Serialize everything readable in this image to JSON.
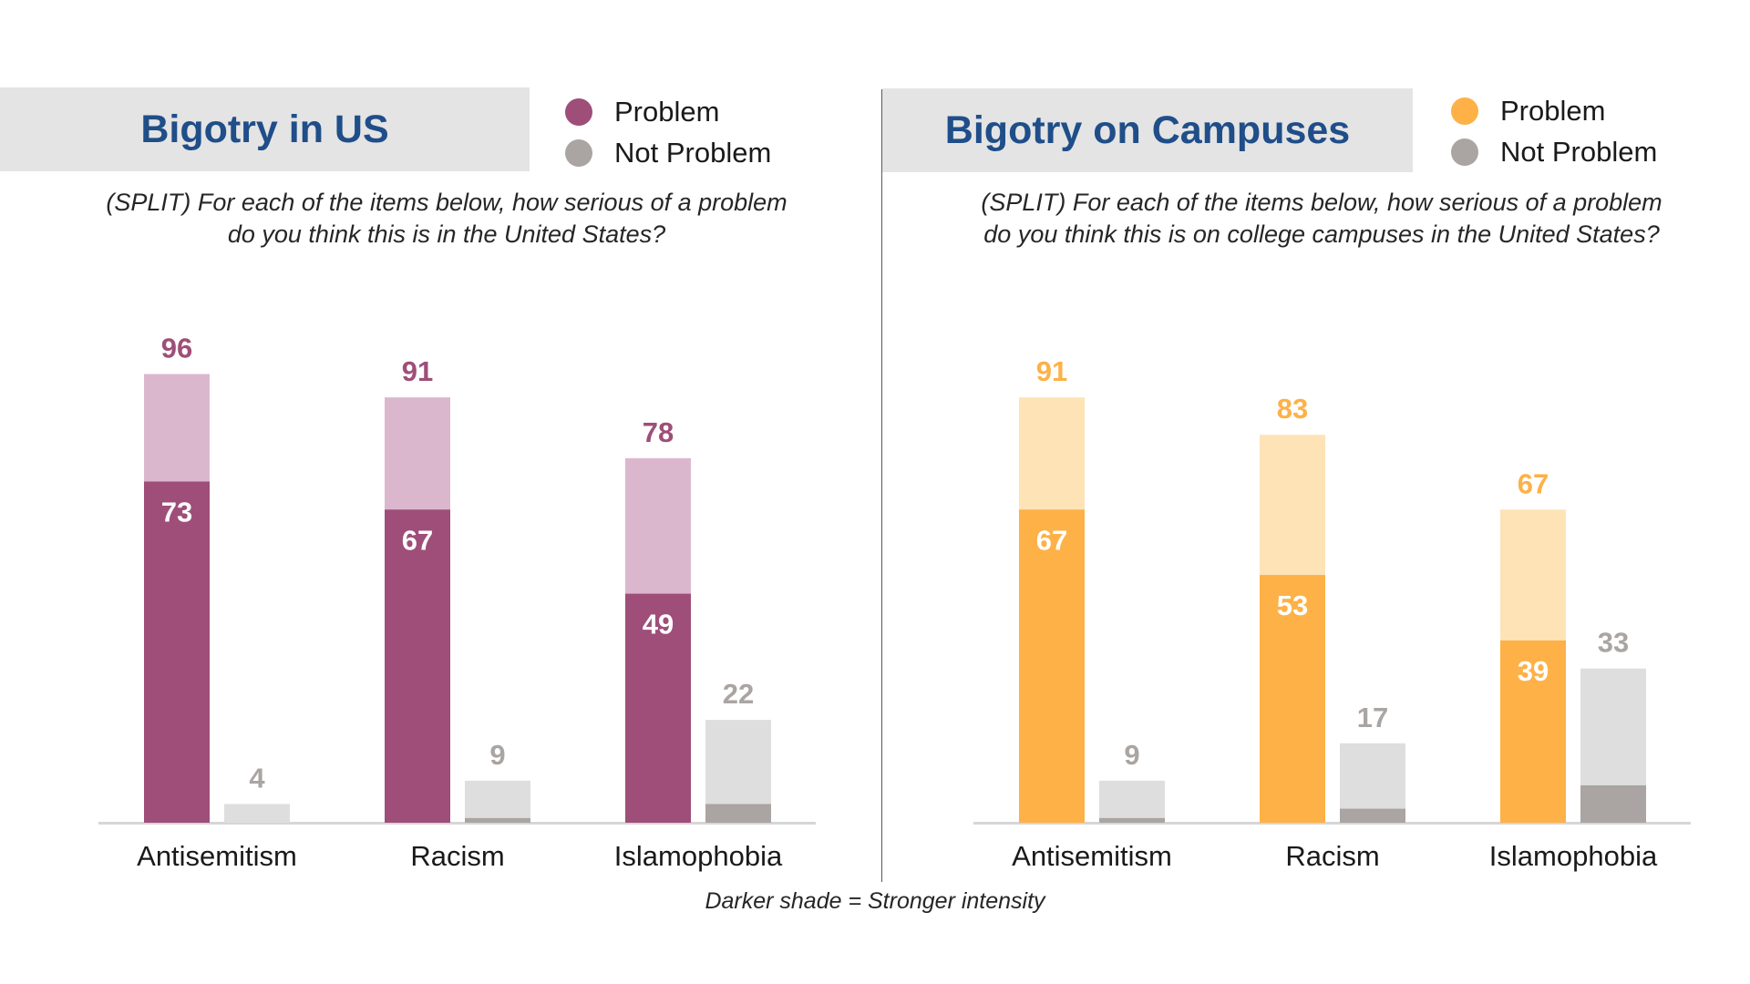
{
  "footnote": "Darker shade = Stronger intensity",
  "colors": {
    "us_problem_dark": "#9e4e79",
    "us_problem_light": "#dbb7ce",
    "campus_problem_dark": "#fdb147",
    "campus_problem_light": "#fee3b7",
    "not_problem_light": "#dedede",
    "not_problem_dark": "#aaa5a2",
    "us_label": "#9e4e79",
    "campus_label": "#fdb147",
    "not_problem_label": "#aaa5a2",
    "title_text": "#1f4e89",
    "title_band": "#e4e4e4"
  },
  "panels": [
    {
      "title": "Bigotry in US",
      "legend": {
        "problem": "Problem",
        "not_problem": "Not Problem"
      },
      "question": "(SPLIT) For each of the items below, how serious of a problem do you think this is in the United States?",
      "question_line1": "(SPLIT) For each of the items below, how serious of a problem",
      "question_line2": "do you think this is in the United States?"
    },
    {
      "title": "Bigotry on Campuses",
      "legend": {
        "problem": "Problem",
        "not_problem": "Not Problem"
      },
      "question": "(SPLIT) For each of the items below, how serious of a problem do you think this is on college campuses in the United States?",
      "question_line1": "(SPLIT) For each of the items below, how serious of a problem",
      "question_line2": "do you think this is on college campuses in the United States?"
    }
  ],
  "chart_data": [
    {
      "type": "bar",
      "title": "Bigotry in US",
      "categories": [
        "Antisemitism",
        "Racism",
        "Islamophobia"
      ],
      "ylim": [
        0,
        100
      ],
      "series": [
        {
          "name": "Problem",
          "values": [
            96,
            91,
            78
          ],
          "strong": [
            73,
            67,
            49
          ]
        },
        {
          "name": "Not Problem",
          "values": [
            4,
            9,
            22
          ],
          "strong": [
            0,
            1,
            4
          ]
        }
      ]
    },
    {
      "type": "bar",
      "title": "Bigotry on Campuses",
      "categories": [
        "Antisemitism",
        "Racism",
        "Islamophobia"
      ],
      "ylim": [
        0,
        100
      ],
      "series": [
        {
          "name": "Problem",
          "values": [
            91,
            83,
            67
          ],
          "strong": [
            67,
            53,
            39
          ]
        },
        {
          "name": "Not Problem",
          "values": [
            9,
            17,
            33
          ],
          "strong": [
            1,
            3,
            8
          ]
        }
      ]
    }
  ]
}
